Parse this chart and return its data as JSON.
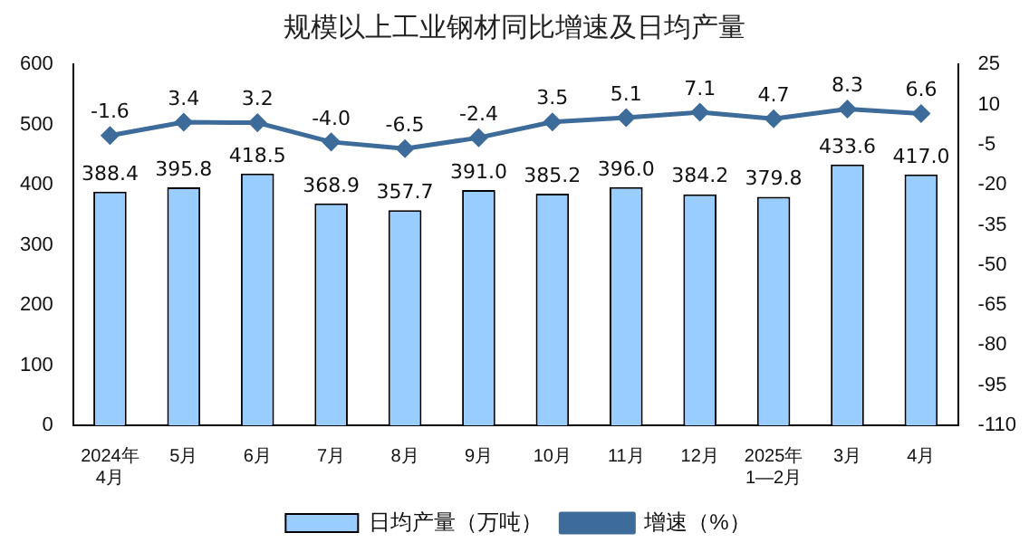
{
  "chart_data": {
    "type": "bar",
    "title": "规模以上工业钢材同比增速及日均产量",
    "categories": [
      "2024年\n4月",
      "5月",
      "6月",
      "7月",
      "8月",
      "9月",
      "10月",
      "11月",
      "12月",
      "2025年\n1—2月",
      "3月",
      "4月"
    ],
    "series": [
      {
        "name": "日均产量（万吨）",
        "color": "#99ccff",
        "values": [
          388.4,
          395.8,
          418.5,
          368.9,
          357.7,
          391.0,
          385.2,
          396.0,
          384.2,
          379.8,
          433.6,
          417.0
        ],
        "value_labels": [
          "388.4",
          "395.8",
          "418.5",
          "368.9",
          "357.7",
          "391.0",
          "385.2",
          "396.0",
          "384.2",
          "379.8",
          "433.6",
          "417.0"
        ]
      },
      {
        "name": "增速（%）",
        "type": "line",
        "axis": "y2",
        "color": "#3d6b9a",
        "values": [
          -1.6,
          3.4,
          3.2,
          -4.0,
          -6.5,
          -2.4,
          3.5,
          5.1,
          7.1,
          4.7,
          8.3,
          6.6
        ],
        "value_labels": [
          "-1.6",
          "3.4",
          "3.2",
          "-4.0",
          "-6.5",
          "-2.4",
          "3.5",
          "5.1",
          "7.1",
          "4.7",
          "8.3",
          "6.6"
        ]
      }
    ],
    "ylim": [
      0,
      600
    ],
    "yticks": [
      0,
      100,
      200,
      300,
      400,
      500,
      600
    ],
    "y2lim": [
      -110,
      25
    ],
    "y2ticks": [
      -110,
      -95,
      -80,
      -65,
      -50,
      -35,
      -20,
      -5,
      10,
      25
    ],
    "legend": "bottom",
    "marker": "diamond",
    "grid": false
  }
}
